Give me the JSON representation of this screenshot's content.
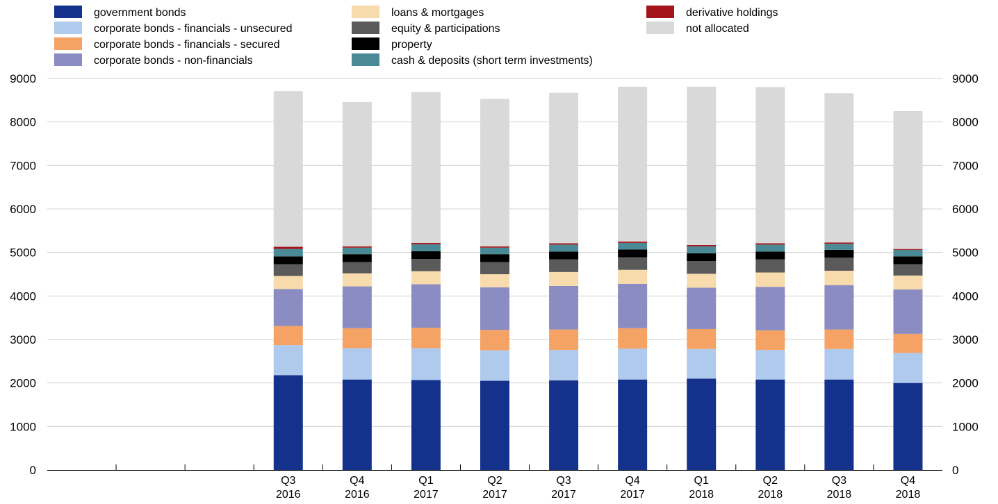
{
  "chart_data": {
    "type": "bar",
    "stacked": true,
    "categories": [
      {
        "q": "",
        "y": ""
      },
      {
        "q": "",
        "y": ""
      },
      {
        "q": "",
        "y": ""
      },
      {
        "q": "Q3",
        "y": "2016"
      },
      {
        "q": "Q4",
        "y": "2016"
      },
      {
        "q": "Q1",
        "y": "2017"
      },
      {
        "q": "Q2",
        "y": "2017"
      },
      {
        "q": "Q3",
        "y": "2017"
      },
      {
        "q": "Q4",
        "y": "2017"
      },
      {
        "q": "Q1",
        "y": "2018"
      },
      {
        "q": "Q2",
        "y": "2018"
      },
      {
        "q": "Q3",
        "y": "2018"
      },
      {
        "q": "Q4",
        "y": "2018"
      }
    ],
    "ylim": [
      0,
      9000
    ],
    "yticks": [
      "0",
      "1000",
      "2000",
      "3000",
      "4000",
      "5000",
      "6000",
      "7000",
      "8000",
      "9000"
    ],
    "grid": true,
    "legend_position": "top",
    "series": [
      {
        "name": "government bonds",
        "color": "#14328c",
        "values": [
          null,
          null,
          null,
          2180,
          2080,
          2070,
          2050,
          2060,
          2080,
          2100,
          2080,
          2080,
          2000
        ]
      },
      {
        "name": "corporate bonds - financials - unsecured",
        "color": "#afcaed",
        "values": [
          null,
          null,
          null,
          690,
          720,
          730,
          700,
          700,
          710,
          680,
          680,
          700,
          690
        ]
      },
      {
        "name": "corporate bonds - financials - secured",
        "color": "#f5a365",
        "values": [
          null,
          null,
          null,
          440,
          460,
          470,
          470,
          470,
          470,
          460,
          450,
          450,
          440
        ]
      },
      {
        "name": "corporate bonds - non-financials",
        "color": "#8a8cc2",
        "values": [
          null,
          null,
          null,
          850,
          960,
          1000,
          980,
          1000,
          1020,
          950,
          1000,
          1020,
          1020
        ]
      },
      {
        "name": "loans & mortgages",
        "color": "#f7dbad",
        "values": [
          null,
          null,
          null,
          300,
          300,
          300,
          300,
          320,
          320,
          320,
          330,
          330,
          320
        ]
      },
      {
        "name": "equity & participations",
        "color": "#5a5a5a",
        "values": [
          null,
          null,
          null,
          270,
          260,
          280,
          280,
          290,
          290,
          290,
          300,
          300,
          260
        ]
      },
      {
        "name": "property",
        "color": "#000000",
        "values": [
          null,
          null,
          null,
          180,
          180,
          180,
          180,
          180,
          180,
          180,
          180,
          180,
          180
        ]
      },
      {
        "name": "cash & deposits (short term investments)",
        "color": "#4a8a96",
        "values": [
          null,
          null,
          null,
          170,
          150,
          160,
          150,
          160,
          150,
          160,
          160,
          140,
          150
        ]
      },
      {
        "name": "derivative holdings",
        "color": "#a3151a",
        "values": [
          null,
          null,
          null,
          50,
          30,
          30,
          30,
          30,
          30,
          30,
          30,
          30,
          20
        ]
      },
      {
        "name": "not allocated",
        "color": "#d9d9d9",
        "values": [
          null,
          null,
          null,
          3580,
          3320,
          3470,
          3390,
          3460,
          3560,
          3640,
          3590,
          3430,
          3170
        ]
      }
    ],
    "legend_order": [
      [
        "government bonds",
        "corporate bonds - financials - unsecured",
        "corporate bonds - financials - secured",
        "corporate bonds - non-financials"
      ],
      [
        "loans & mortgages",
        "equity & participations",
        "property",
        "cash & deposits (short term investments)"
      ],
      [
        "derivative holdings",
        "not allocated"
      ]
    ]
  }
}
